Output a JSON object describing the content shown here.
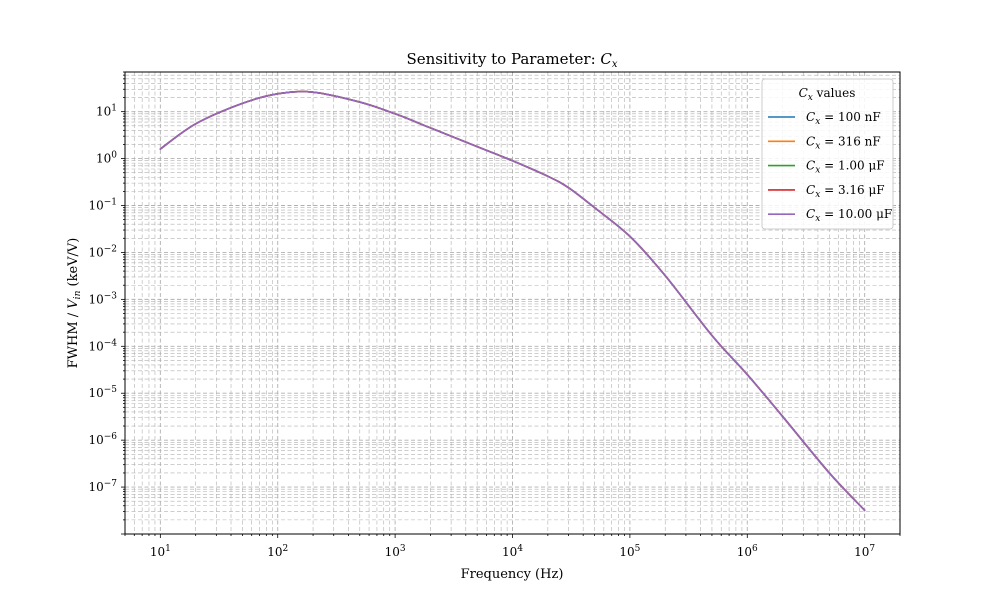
{
  "chart_data": {
    "type": "line",
    "title": "Sensitivity to Parameter: ",
    "title_symbol": "C",
    "title_subscript": "x",
    "xlabel": "Frequency (Hz)",
    "ylabel_prefix": "FWHM / ",
    "ylabel_symbol": "V",
    "ylabel_subscript": "in",
    "ylabel_suffix": " (keV/V)",
    "x_scale": "log",
    "y_scale": "log",
    "xlim": [
      5,
      20000000
    ],
    "ylim": [
      1e-08,
      70
    ],
    "x_ticks": [
      {
        "value": 10,
        "base": "10",
        "exp": "1"
      },
      {
        "value": 100,
        "base": "10",
        "exp": "2"
      },
      {
        "value": 1000,
        "base": "10",
        "exp": "3"
      },
      {
        "value": 10000,
        "base": "10",
        "exp": "4"
      },
      {
        "value": 100000,
        "base": "10",
        "exp": "5"
      },
      {
        "value": 1000000,
        "base": "10",
        "exp": "6"
      },
      {
        "value": 10000000,
        "base": "10",
        "exp": "7"
      }
    ],
    "y_ticks": [
      {
        "value": 10,
        "base": "10",
        "exp": "1"
      },
      {
        "value": 1,
        "base": "10",
        "exp": "0"
      },
      {
        "value": 0.1,
        "base": "10",
        "exp": "−1"
      },
      {
        "value": 0.01,
        "base": "10",
        "exp": "−2"
      },
      {
        "value": 0.001,
        "base": "10",
        "exp": "−3"
      },
      {
        "value": 0.0001,
        "base": "10",
        "exp": "−4"
      },
      {
        "value": 1e-05,
        "base": "10",
        "exp": "−5"
      },
      {
        "value": 1e-06,
        "base": "10",
        "exp": "−6"
      },
      {
        "value": 1e-07,
        "base": "10",
        "exp": "−7"
      }
    ],
    "grid": true,
    "grid_style": "dashed",
    "legend": {
      "placement": "top-right",
      "title_symbol": "C",
      "title_subscript": "x",
      "title_suffix": " values"
    },
    "x": [
      10,
      20,
      50,
      100,
      200,
      500,
      1000,
      2000,
      5000,
      10000,
      20000,
      30000,
      50000,
      100000,
      200000,
      500000,
      1000000,
      2000000,
      5000000,
      10000000
    ],
    "series": [
      {
        "symbol": "C",
        "subscript": "x",
        "value_text": " = 100 nF",
        "color": "#1f77b4",
        "values": [
          1.6,
          5.5,
          15,
          24,
          26,
          16,
          9,
          4.5,
          1.8,
          0.9,
          0.42,
          0.24,
          0.09,
          0.022,
          0.0032,
          0.00017,
          2.5e-05,
          3.2e-06,
          2e-07,
          3.2e-08
        ]
      },
      {
        "symbol": "C",
        "subscript": "x",
        "value_text": " = 316 nF",
        "color": "#ff7f0e",
        "values": [
          1.6,
          5.5,
          15,
          24,
          26,
          16,
          9,
          4.5,
          1.8,
          0.9,
          0.42,
          0.24,
          0.09,
          0.022,
          0.0032,
          0.00017,
          2.5e-05,
          3.2e-06,
          2e-07,
          3.2e-08
        ]
      },
      {
        "symbol": "C",
        "subscript": "x",
        "value_text": " = 1.00 μF",
        "color": "#2ca02c",
        "values": [
          1.6,
          5.5,
          15,
          24,
          26,
          16,
          9,
          4.5,
          1.8,
          0.9,
          0.42,
          0.24,
          0.09,
          0.022,
          0.0032,
          0.00017,
          2.5e-05,
          3.2e-06,
          2e-07,
          3.2e-08
        ]
      },
      {
        "symbol": "C",
        "subscript": "x",
        "value_text": " = 3.16 μF",
        "color": "#d62728",
        "values": [
          1.6,
          5.5,
          15,
          24,
          26,
          16,
          9,
          4.5,
          1.8,
          0.9,
          0.42,
          0.24,
          0.09,
          0.022,
          0.0032,
          0.00017,
          2.5e-05,
          3.2e-06,
          2e-07,
          3.2e-08
        ]
      },
      {
        "symbol": "C",
        "subscript": "x",
        "value_text": " = 10.00 μF",
        "color": "#9467bd",
        "values": [
          1.6,
          5.5,
          15,
          24,
          26,
          16,
          9,
          4.5,
          1.8,
          0.9,
          0.42,
          0.24,
          0.09,
          0.022,
          0.0032,
          0.00017,
          2.5e-05,
          3.2e-06,
          2e-07,
          3.2e-08
        ]
      }
    ]
  }
}
